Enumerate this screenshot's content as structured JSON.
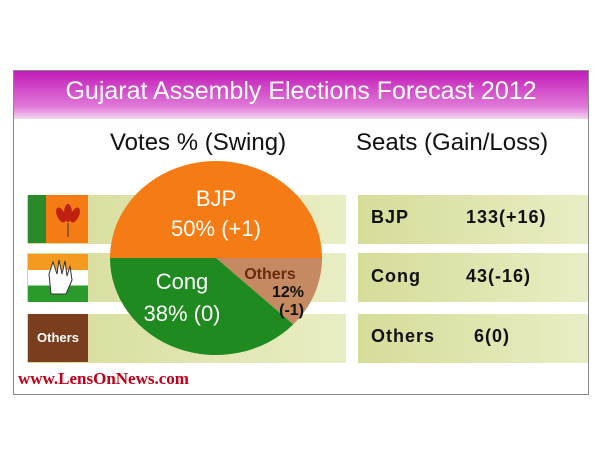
{
  "title": "Gujarat Assembly Elections Forecast 2012",
  "chart_data": {
    "type": "pie",
    "title": "Votes % (Swing)",
    "slices": [
      {
        "name": "BJP",
        "value": 50,
        "swing": "+1",
        "label1": "BJP",
        "label2": "50% (+1)",
        "color": "#f57c14"
      },
      {
        "name": "Others",
        "value": 12,
        "swing": "-1",
        "label1": "Others",
        "label2": "12%",
        "label3": "(-1)",
        "color": "#c58a62"
      },
      {
        "name": "Cong",
        "value": 38,
        "swing": "0",
        "label1": "Cong",
        "label2": "38% (0)",
        "color": "#1f8a1f"
      }
    ]
  },
  "seats": {
    "title": "Seats (Gain/Loss)",
    "rows": [
      {
        "party": "BJP",
        "seats": "133(+16)"
      },
      {
        "party": "Cong",
        "seats": "43(-16)"
      },
      {
        "party": "Others",
        "seats": "6(0)"
      }
    ]
  },
  "flags": {
    "others_label": "Others"
  },
  "url": "www.LensOnNews.com"
}
